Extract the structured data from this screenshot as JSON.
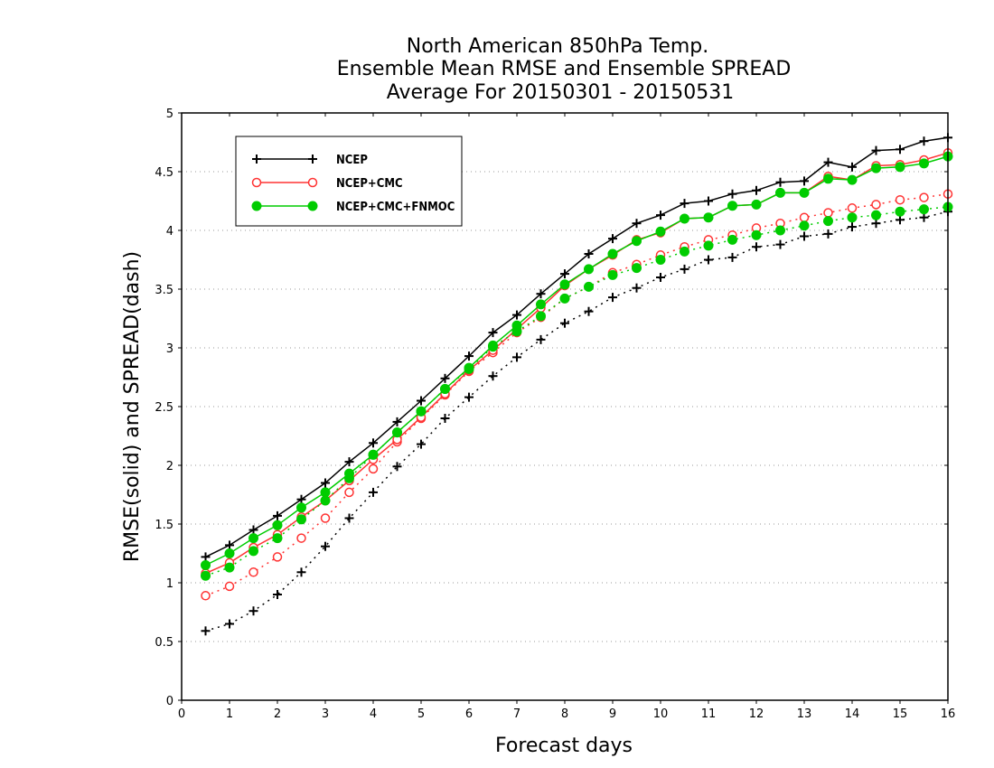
{
  "chart_data": {
    "type": "line",
    "title": [
      "North American 850hPa Temp.",
      "Ensemble Mean RMSE and Ensemble SPREAD",
      "Average For 20150301 - 20150531"
    ],
    "xlabel": "Forecast days",
    "ylabel": "RMSE(solid) and SPREAD(dash)",
    "xlim": [
      0,
      16
    ],
    "ylim": [
      0,
      5
    ],
    "xticks": [
      0,
      1,
      2,
      3,
      4,
      5,
      6,
      7,
      8,
      9,
      10,
      11,
      12,
      13,
      14,
      15,
      16
    ],
    "yticks": [
      0,
      0.5,
      1,
      1.5,
      2,
      2.5,
      3,
      3.5,
      4,
      4.5,
      5
    ],
    "grid": "horizontal-dotted",
    "legend_position": "top-left",
    "x": [
      0.5,
      1,
      1.5,
      2,
      2.5,
      3,
      3.5,
      4,
      4.5,
      5,
      5.5,
      6,
      6.5,
      7,
      7.5,
      8,
      8.5,
      9,
      9.5,
      10,
      10.5,
      11,
      11.5,
      12,
      12.5,
      13,
      13.5,
      14,
      14.5,
      15,
      15.5,
      16
    ],
    "series": [
      {
        "name": "NCEP",
        "color": "#000000",
        "marker": "plus",
        "rmse": [
          1.22,
          1.32,
          1.45,
          1.57,
          1.71,
          1.85,
          2.03,
          2.19,
          2.37,
          2.55,
          2.74,
          2.93,
          3.13,
          3.28,
          3.46,
          3.63,
          3.8,
          3.93,
          4.06,
          4.13,
          4.23,
          4.25,
          4.31,
          4.34,
          4.41,
          4.42,
          4.58,
          4.54,
          4.68,
          4.69,
          4.76,
          4.79
        ],
        "spread": [
          0.59,
          0.65,
          0.76,
          0.9,
          1.09,
          1.31,
          1.55,
          1.77,
          1.99,
          2.18,
          2.4,
          2.58,
          2.76,
          2.92,
          3.07,
          3.21,
          3.31,
          3.43,
          3.51,
          3.6,
          3.67,
          3.75,
          3.77,
          3.86,
          3.88,
          3.95,
          3.97,
          4.03,
          4.06,
          4.09,
          4.11,
          4.16
        ]
      },
      {
        "name": "NCEP+CMC",
        "color": "#ff3333",
        "marker": "open-circle",
        "rmse": [
          1.08,
          1.17,
          1.3,
          1.41,
          1.56,
          1.7,
          1.87,
          2.05,
          2.22,
          2.41,
          2.61,
          2.81,
          2.98,
          3.16,
          3.34,
          3.53,
          3.67,
          3.79,
          3.92,
          3.98,
          4.1,
          4.11,
          4.21,
          4.22,
          4.32,
          4.32,
          4.46,
          4.43,
          4.55,
          4.56,
          4.6,
          4.66
        ],
        "spread": [
          0.89,
          0.97,
          1.09,
          1.22,
          1.38,
          1.55,
          1.77,
          1.97,
          2.2,
          2.4,
          2.6,
          2.8,
          2.96,
          3.13,
          3.26,
          3.42,
          3.52,
          3.64,
          3.71,
          3.79,
          3.86,
          3.92,
          3.96,
          4.02,
          4.06,
          4.11,
          4.15,
          4.19,
          4.22,
          4.26,
          4.28,
          4.31
        ]
      },
      {
        "name": "NCEP+CMC+FNMOC",
        "color": "#00cc00",
        "marker": "filled-circle",
        "rmse": [
          1.15,
          1.25,
          1.38,
          1.49,
          1.64,
          1.77,
          1.93,
          2.09,
          2.28,
          2.46,
          2.65,
          2.83,
          3.02,
          3.19,
          3.37,
          3.54,
          3.67,
          3.8,
          3.91,
          3.99,
          4.1,
          4.11,
          4.21,
          4.22,
          4.32,
          4.32,
          4.44,
          4.43,
          4.53,
          4.54,
          4.57,
          4.63
        ],
        "spread": [
          1.06,
          1.13,
          1.27,
          1.38,
          1.54,
          1.7,
          1.89,
          2.09,
          2.28,
          2.46,
          2.65,
          2.82,
          3.01,
          3.14,
          3.27,
          3.42,
          3.52,
          3.62,
          3.68,
          3.75,
          3.82,
          3.87,
          3.92,
          3.96,
          4.0,
          4.04,
          4.08,
          4.11,
          4.13,
          4.16,
          4.18,
          4.2
        ]
      }
    ]
  }
}
